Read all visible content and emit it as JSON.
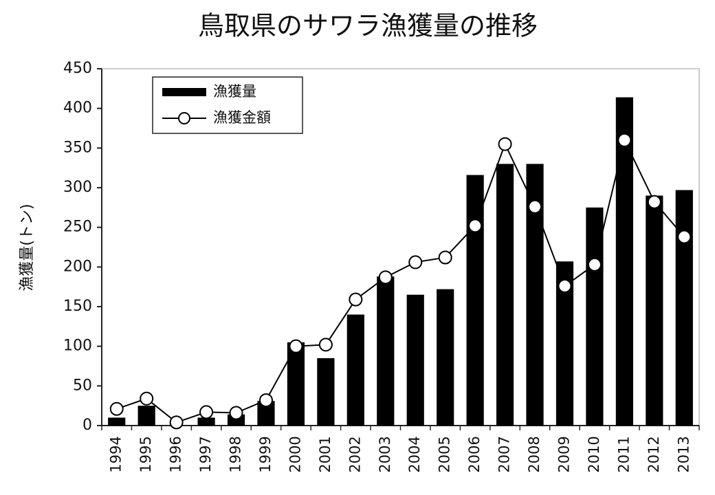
{
  "chart_data": {
    "type": "bar",
    "title": "鳥取県のサワラ漁獲量の推移",
    "y_label": "漁獲量(トン)",
    "categories": [
      "1994",
      "1995",
      "1996",
      "1997",
      "1998",
      "1999",
      "2000",
      "2001",
      "2002",
      "2003",
      "2004",
      "2005",
      "2006",
      "2007",
      "2008",
      "2009",
      "2010",
      "2011",
      "2012",
      "2013"
    ],
    "series": [
      {
        "name": "漁獲量",
        "type": "bar",
        "color": "#000000",
        "values": [
          10,
          25,
          0,
          10,
          14,
          31,
          105,
          85,
          140,
          188,
          165,
          172,
          316,
          330,
          330,
          207,
          275,
          414,
          290,
          297
        ]
      },
      {
        "name": "漁獲金額",
        "type": "line",
        "color": "#000000",
        "values": [
          21,
          34,
          4,
          17,
          16,
          32,
          100,
          102,
          159,
          187,
          206,
          212,
          252,
          355,
          276,
          176,
          203,
          360,
          282,
          238
        ]
      }
    ],
    "ylim": [
      0,
      450
    ],
    "yticks": [
      0,
      50,
      100,
      150,
      200,
      250,
      300,
      350,
      400,
      450
    ],
    "legend": "upper-left"
  }
}
